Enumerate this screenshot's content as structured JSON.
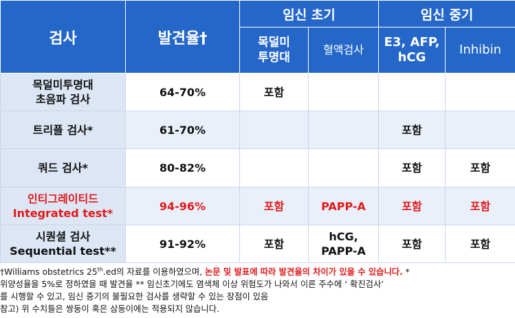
{
  "header": {
    "test": "검사",
    "detection_rate": "발견율†",
    "first_trimester": "임신 초기",
    "second_trimester": "임신 중기",
    "nt": [
      "목덜미",
      "투명대"
    ],
    "blood_test": "혈액검사",
    "e3": [
      "E3, AFP,",
      "hCG"
    ],
    "inhibin": "Inhibin"
  },
  "rows": [
    {
      "name": [
        "목덜미투명대",
        "초음파 검사"
      ],
      "rate": "64-70%",
      "nt": "포함",
      "blood": [],
      "e3": "",
      "inhibin": "",
      "highlight": false
    },
    {
      "name": [
        "트리플 검사*"
      ],
      "rate": "61-70%",
      "nt": "",
      "blood": [],
      "e3": "포함",
      "inhibin": "",
      "highlight": false
    },
    {
      "name": [
        "쿼드 검사*"
      ],
      "rate": "80-82%",
      "nt": "",
      "blood": [],
      "e3": "포함",
      "inhibin": "포함",
      "highlight": false
    },
    {
      "name": [
        "인티그레이티드",
        "Integrated test*"
      ],
      "rate": "94-96%",
      "nt": "포함",
      "blood": [
        "PAPP-A"
      ],
      "e3": "포함",
      "inhibin": "포함",
      "highlight": true
    },
    {
      "name": [
        "시퀀셜 검사",
        "Sequential test**"
      ],
      "rate": "91-92%",
      "nt": "포함",
      "blood": [
        "hCG,",
        "PAPP-A"
      ],
      "e3": "포함",
      "inhibin": "포함",
      "highlight": false
    }
  ],
  "notes": {
    "line1_pre": "†Williams obstetrics 25",
    "line1_sup": "th",
    "line1_mid": ".ed의 자료를 이용하였으며, ",
    "line1_hl": "논문 및 발표에 따라 발견율의 차이가 있을 수 있습니다.",
    "line1_post": " *",
    "line2": "위양성율을 5%로 정하였을 때 발견율 ** 임신초기에도 염색체 이상 위험도가 나와서 이른 주수에  ‘ 확진검사’",
    "line3": "를 시행할 수 있고, 임신 중기의 불필요한 검사를 생략할 수 있는 장점이 있음",
    "line4": "참고) 위 수치들은 쌍둥이 혹은 삼둥이에는 적용되지 않습니다."
  }
}
